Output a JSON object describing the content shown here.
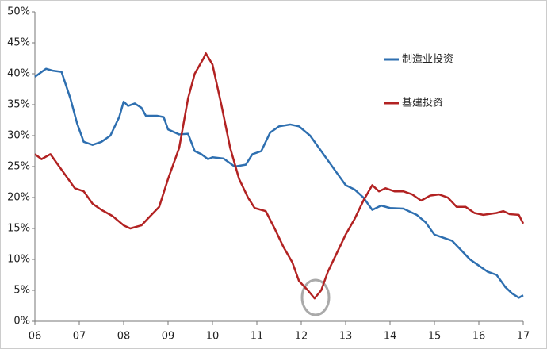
{
  "chart_data": {
    "type": "line",
    "xlim": [
      2006,
      2017
    ],
    "xticks": [
      {
        "value": 2006,
        "label": "06"
      },
      {
        "value": 2007,
        "label": "07"
      },
      {
        "value": 2008,
        "label": "08"
      },
      {
        "value": 2009,
        "label": "09"
      },
      {
        "value": 2010,
        "label": "10"
      },
      {
        "value": 2011,
        "label": "11"
      },
      {
        "value": 2012,
        "label": "12"
      },
      {
        "value": 2013,
        "label": "13"
      },
      {
        "value": 2014,
        "label": "14"
      },
      {
        "value": 2015,
        "label": "15"
      },
      {
        "value": 2016,
        "label": "16"
      },
      {
        "value": 2017,
        "label": "17"
      }
    ],
    "ylim": [
      0,
      50
    ],
    "yticks": [
      {
        "value": 0,
        "label": "0%"
      },
      {
        "value": 5,
        "label": "5%"
      },
      {
        "value": 10,
        "label": "10%"
      },
      {
        "value": 15,
        "label": "15%"
      },
      {
        "value": 20,
        "label": "20%"
      },
      {
        "value": 25,
        "label": "25%"
      },
      {
        "value": 30,
        "label": "30%"
      },
      {
        "value": 35,
        "label": "35%"
      },
      {
        "value": 40,
        "label": "40%"
      },
      {
        "value": 45,
        "label": "45%"
      },
      {
        "value": 50,
        "label": "50%"
      }
    ],
    "grid": false,
    "legend": "right",
    "series": [
      {
        "name": "制造业投资",
        "color": "#2e6fb0",
        "x": [
          2006.0,
          2006.25,
          2006.4,
          2006.6,
          2006.8,
          2006.95,
          2007.1,
          2007.3,
          2007.5,
          2007.7,
          2007.9,
          2008.0,
          2008.1,
          2008.25,
          2008.4,
          2008.5,
          2008.75,
          2008.9,
          2009.0,
          2009.25,
          2009.45,
          2009.6,
          2009.75,
          2009.9,
          2010.0,
          2010.25,
          2010.5,
          2010.75,
          2010.9,
          2011.1,
          2011.3,
          2011.5,
          2011.75,
          2011.95,
          2012.2,
          2012.4,
          2012.6,
          2012.8,
          2013.0,
          2013.2,
          2013.4,
          2013.6,
          2013.8,
          2014.0,
          2014.3,
          2014.6,
          2014.8,
          2015.0,
          2015.2,
          2015.4,
          2015.6,
          2015.8,
          2016.0,
          2016.2,
          2016.4,
          2016.6,
          2016.75,
          2016.9,
          2017.0
        ],
        "values": [
          39.5,
          40.8,
          40.5,
          40.3,
          36,
          32,
          29,
          28.5,
          29,
          30,
          33,
          35.5,
          34.8,
          35.2,
          34.5,
          33.2,
          33.2,
          33,
          31,
          30.2,
          30.3,
          27.5,
          27,
          26.2,
          26.5,
          26.3,
          25,
          25.3,
          27,
          27.5,
          30.5,
          31.5,
          31.8,
          31.5,
          30,
          28,
          26,
          24,
          22,
          21.3,
          20,
          18,
          18.7,
          18.3,
          18.2,
          17.2,
          16,
          14,
          13.5,
          13,
          11.5,
          10,
          9,
          8,
          7.5,
          5.5,
          4.5,
          3.8,
          4.2
        ]
      },
      {
        "name": "基建投资",
        "color": "#b22222",
        "x": [
          2006.0,
          2006.15,
          2006.35,
          2006.5,
          2006.7,
          2006.9,
          2007.1,
          2007.3,
          2007.5,
          2007.75,
          2008.0,
          2008.15,
          2008.4,
          2008.6,
          2008.8,
          2009.0,
          2009.25,
          2009.45,
          2009.6,
          2009.8,
          2009.85,
          2010.0,
          2010.2,
          2010.4,
          2010.6,
          2010.8,
          2010.95,
          2011.2,
          2011.4,
          2011.6,
          2011.8,
          2011.95,
          2012.15,
          2012.3,
          2012.45,
          2012.6,
          2012.8,
          2013.0,
          2013.2,
          2013.4,
          2013.6,
          2013.75,
          2013.9,
          2014.1,
          2014.3,
          2014.5,
          2014.7,
          2014.9,
          2015.1,
          2015.3,
          2015.5,
          2015.7,
          2015.9,
          2016.1,
          2016.4,
          2016.55,
          2016.7,
          2016.9,
          2017.0
        ],
        "values": [
          27,
          26.2,
          27,
          25.5,
          23.5,
          21.5,
          21,
          19,
          18,
          17,
          15.5,
          15,
          15.5,
          17,
          18.5,
          23,
          28,
          36,
          40,
          42.5,
          43.3,
          41.5,
          35,
          28,
          23,
          20,
          18.3,
          17.8,
          15,
          12,
          9.5,
          6.5,
          5,
          3.7,
          5,
          8,
          11,
          14,
          16.5,
          19.5,
          22,
          21,
          21.5,
          21,
          21,
          20.5,
          19.5,
          20.3,
          20.5,
          20,
          18.5,
          18.5,
          17.5,
          17.2,
          17.5,
          17.8,
          17.3,
          17.2,
          15.8
        ]
      }
    ]
  }
}
